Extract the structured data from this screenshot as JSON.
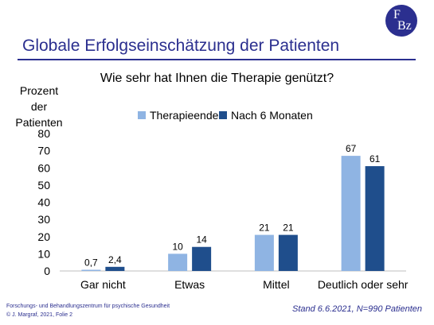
{
  "slide": {
    "title": "Globale Erfolgseinschätzung der Patienten",
    "logo_top": "F",
    "logo_bottom": "Bz"
  },
  "footer": {
    "org": "Forschungs- und Behandlungszentrum für psychische Gesundheit",
    "copyright": "© J. Margraf, 2021, Folie 2",
    "stand": "Stand 6.6.2021, N=990 Patienten"
  },
  "chart_data": {
    "type": "bar",
    "title": "Wie sehr hat Ihnen die Therapie genützt?",
    "ylabel_lines": [
      "Prozent",
      "der",
      "Patienten"
    ],
    "xlabel": "",
    "categories": [
      "Gar nicht",
      "Etwas",
      "Mittel",
      "Deutlich oder sehr"
    ],
    "series": [
      {
        "name": "Therapieende",
        "values": [
          0.7,
          10,
          21,
          67
        ],
        "labels": [
          "0,7",
          "10",
          "21",
          "67"
        ],
        "color": "#8fb4e3"
      },
      {
        "name": "Nach 6 Monaten",
        "values": [
          2.4,
          14,
          21,
          61
        ],
        "labels": [
          "2,4",
          "14",
          "21",
          "61"
        ],
        "color": "#1f4e8c"
      }
    ],
    "ylim": [
      0,
      80
    ],
    "yticks": [
      0,
      10,
      20,
      30,
      40,
      50,
      60,
      70,
      80
    ],
    "grid": false,
    "legend_position": "top"
  }
}
